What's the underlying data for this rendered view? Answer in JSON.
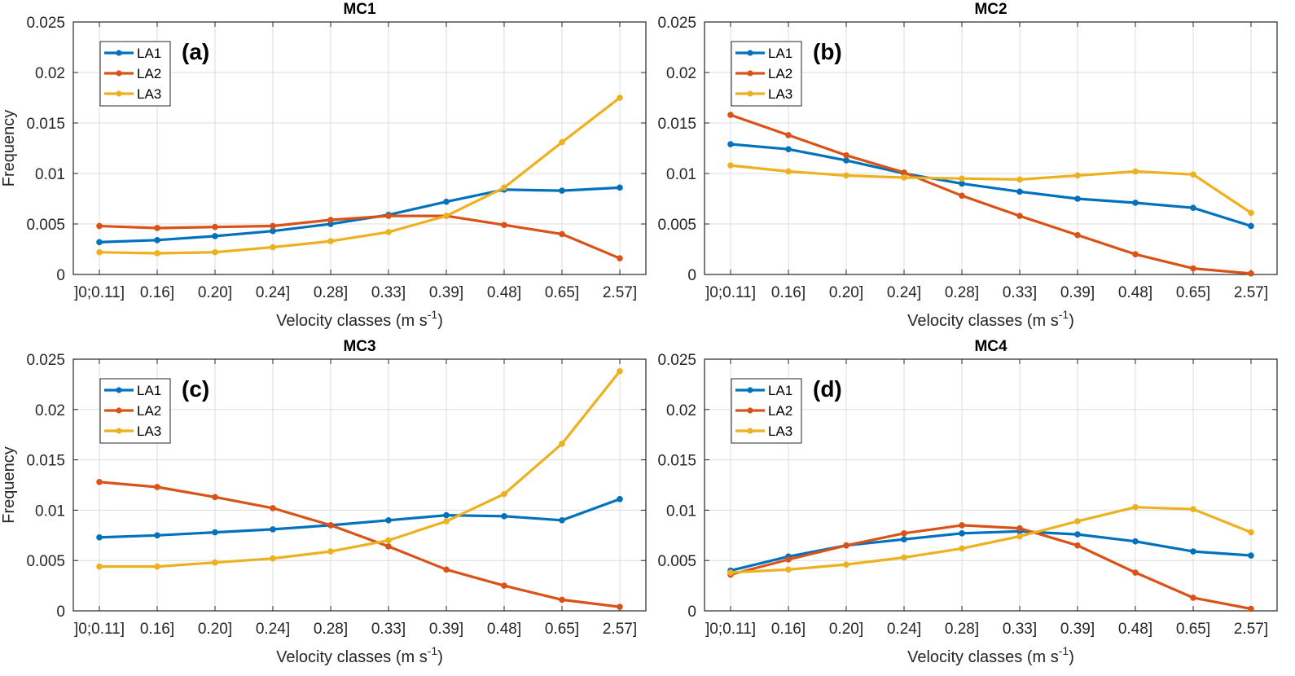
{
  "chart_data": [
    {
      "type": "line",
      "title": "MC1",
      "panel_label": "(a)",
      "xlabel": "Velocity classes (m s",
      "xlabel_sup": "-1",
      "xlabel_end": ")",
      "ylabel": "Frequency",
      "ylim": [
        0,
        0.025
      ],
      "yticks": [
        "0",
        "0.005",
        "0.01",
        "0.015",
        "0.02",
        "0.025"
      ],
      "categories": [
        "]0;0.11]",
        "0.16]",
        "0.20]",
        "0.24]",
        "0.28]",
        "0.33]",
        "0.39]",
        "0.48]",
        "0.65]",
        "2.57]"
      ],
      "grid": true,
      "legend": "top-left",
      "series": [
        {
          "name": "LA1",
          "color": "#0072BD",
          "values": [
            0.0032,
            0.0034,
            0.0038,
            0.0043,
            0.005,
            0.0059,
            0.0072,
            0.0084,
            0.0083,
            0.0086
          ]
        },
        {
          "name": "LA2",
          "color": "#D95319",
          "values": [
            0.0048,
            0.0046,
            0.0047,
            0.0048,
            0.0054,
            0.0058,
            0.0058,
            0.0049,
            0.004,
            0.0016
          ]
        },
        {
          "name": "LA3",
          "color": "#EDB120",
          "values": [
            0.0022,
            0.0021,
            0.0022,
            0.0027,
            0.0033,
            0.0042,
            0.0058,
            0.0086,
            0.0131,
            0.0175
          ]
        }
      ]
    },
    {
      "type": "line",
      "title": "MC2",
      "panel_label": "(b)",
      "xlabel": "Velocity classes (m s",
      "xlabel_sup": "-1",
      "xlabel_end": ")",
      "ylabel": "",
      "ylim": [
        0,
        0.025
      ],
      "yticks": [
        "0",
        "0.005",
        "0.01",
        "0.015",
        "0.02",
        "0.025"
      ],
      "categories": [
        "]0;0.11]",
        "0.16]",
        "0.20]",
        "0.24]",
        "0.28]",
        "0.33]",
        "0.39]",
        "0.48]",
        "0.65]",
        "2.57]"
      ],
      "grid": true,
      "legend": "top-left",
      "series": [
        {
          "name": "LA1",
          "color": "#0072BD",
          "values": [
            0.0129,
            0.0124,
            0.0113,
            0.01,
            0.009,
            0.0082,
            0.0075,
            0.0071,
            0.0066,
            0.0048
          ]
        },
        {
          "name": "LA2",
          "color": "#D95319",
          "values": [
            0.0158,
            0.0138,
            0.0118,
            0.0101,
            0.0078,
            0.0058,
            0.0039,
            0.002,
            0.0006,
            0.0001
          ]
        },
        {
          "name": "LA3",
          "color": "#EDB120",
          "values": [
            0.0108,
            0.0102,
            0.0098,
            0.0096,
            0.0095,
            0.0094,
            0.0098,
            0.0102,
            0.0099,
            0.0061
          ]
        }
      ]
    },
    {
      "type": "line",
      "title": "MC3",
      "panel_label": "(c)",
      "xlabel": "Velocity classes (m s",
      "xlabel_sup": "-1",
      "xlabel_end": ")",
      "ylabel": "Frequency",
      "ylim": [
        0,
        0.025
      ],
      "yticks": [
        "0",
        "0.005",
        "0.01",
        "0.015",
        "0.02",
        "0.025"
      ],
      "categories": [
        "]0;0.11]",
        "0.16]",
        "0.20]",
        "0.24]",
        "0.28]",
        "0.33]",
        "0.39]",
        "0.48]",
        "0.65]",
        "2.57]"
      ],
      "grid": true,
      "legend": "top-left",
      "series": [
        {
          "name": "LA1",
          "color": "#0072BD",
          "values": [
            0.0073,
            0.0075,
            0.0078,
            0.0081,
            0.0085,
            0.009,
            0.0095,
            0.0094,
            0.009,
            0.0111
          ]
        },
        {
          "name": "LA2",
          "color": "#D95319",
          "values": [
            0.0128,
            0.0123,
            0.0113,
            0.0102,
            0.0085,
            0.0064,
            0.0041,
            0.0025,
            0.0011,
            0.0004
          ]
        },
        {
          "name": "LA3",
          "color": "#EDB120",
          "values": [
            0.0044,
            0.0044,
            0.0048,
            0.0052,
            0.0059,
            0.007,
            0.0089,
            0.0116,
            0.0166,
            0.0238
          ]
        }
      ]
    },
    {
      "type": "line",
      "title": "MC4",
      "panel_label": "(d)",
      "xlabel": "Velocity classes (m s",
      "xlabel_sup": "-1",
      "xlabel_end": ")",
      "ylabel": "",
      "ylim": [
        0,
        0.025
      ],
      "yticks": [
        "0",
        "0.005",
        "0.01",
        "0.015",
        "0.02",
        "0.025"
      ],
      "categories": [
        "]0;0.11]",
        "0.16]",
        "0.20]",
        "0.24]",
        "0.28]",
        "0.33]",
        "0.39]",
        "0.48]",
        "0.65]",
        "2.57]"
      ],
      "grid": true,
      "legend": "top-left",
      "series": [
        {
          "name": "LA1",
          "color": "#0072BD",
          "values": [
            0.004,
            0.0054,
            0.0065,
            0.0071,
            0.0077,
            0.0079,
            0.0076,
            0.0069,
            0.0059,
            0.0055
          ]
        },
        {
          "name": "LA2",
          "color": "#D95319",
          "values": [
            0.0036,
            0.0051,
            0.0065,
            0.0077,
            0.0085,
            0.0082,
            0.0065,
            0.0038,
            0.0013,
            0.0002
          ]
        },
        {
          "name": "LA3",
          "color": "#EDB120",
          "values": [
            0.0038,
            0.0041,
            0.0046,
            0.0053,
            0.0062,
            0.0074,
            0.0089,
            0.0103,
            0.0101,
            0.0078
          ]
        }
      ]
    }
  ]
}
